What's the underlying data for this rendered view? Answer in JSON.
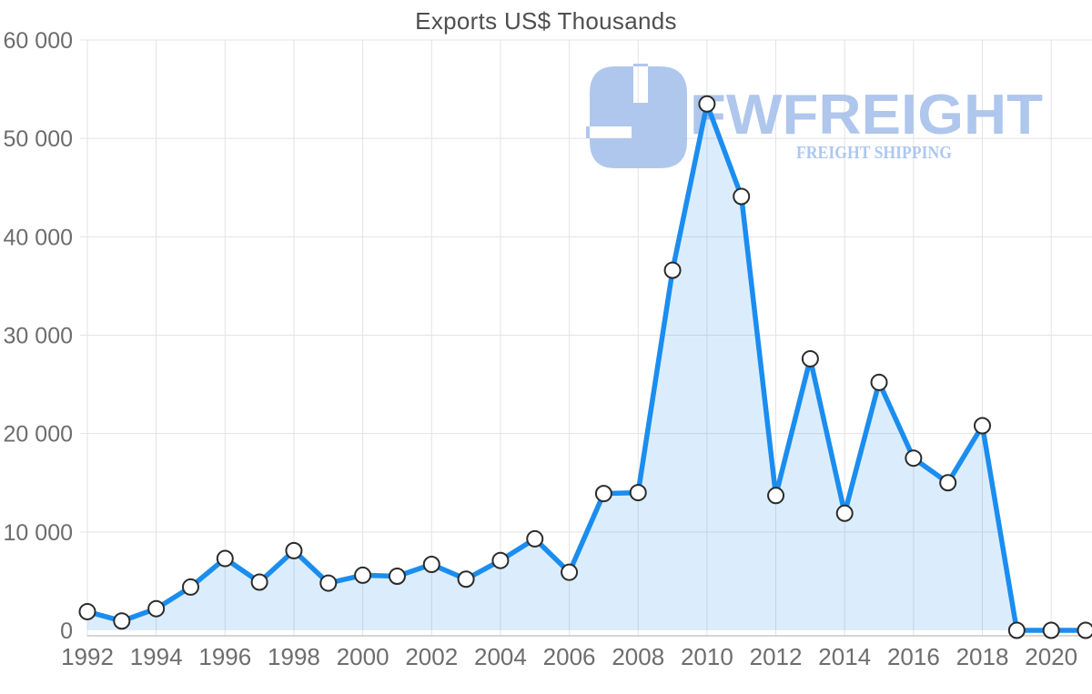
{
  "page": {
    "title": "Exports US$ Thousands"
  },
  "watermark": {
    "brand": "FWFREIGHT",
    "tagline": "FREIGHT SHIPPING",
    "color": "#a9c2ec",
    "tagline_color": "#a9c5f0"
  },
  "chart_data": {
    "type": "area",
    "title": "Exports US$ Thousands",
    "x": [
      1992,
      1993,
      1994,
      1995,
      1996,
      1997,
      1998,
      1999,
      2000,
      2001,
      2002,
      2003,
      2004,
      2005,
      2006,
      2007,
      2008,
      2009,
      2010,
      2011,
      2012,
      2013,
      2014,
      2015,
      2016,
      2017,
      2018,
      2019,
      2020,
      2021
    ],
    "values": [
      1900,
      950,
      2200,
      4400,
      7300,
      4900,
      8100,
      4800,
      5600,
      5500,
      6700,
      5200,
      7100,
      9300,
      5900,
      13900,
      14000,
      36600,
      53500,
      44100,
      13700,
      27600,
      11900,
      25200,
      17500,
      15000,
      20800,
      0,
      0,
      0
    ],
    "xlabel": "",
    "ylabel": "",
    "xlim": [
      1992,
      2021
    ],
    "ylim": [
      0,
      60000
    ],
    "x_tick_labels": [
      "1992",
      "1994",
      "1996",
      "1998",
      "2000",
      "2002",
      "2004",
      "2006",
      "2008",
      "2010",
      "2012",
      "2014",
      "2016",
      "2018",
      "2020"
    ],
    "y_ticks": [
      0,
      10000,
      20000,
      30000,
      40000,
      50000,
      60000
    ],
    "y_tick_labels": [
      "0",
      "10 000",
      "20 000",
      "30 000",
      "40 000",
      "50 000",
      "60 000"
    ],
    "grid": true,
    "legend": "none",
    "line_color": "#1b8def",
    "area_color": "rgba(30,140,240,0.16)",
    "grid_color": "#e3e3e3",
    "label_color": "#6d6d6d",
    "marker_fill": "#ffffff",
    "marker_stroke": "#2b2b2b",
    "marker_radius": 8.5
  }
}
